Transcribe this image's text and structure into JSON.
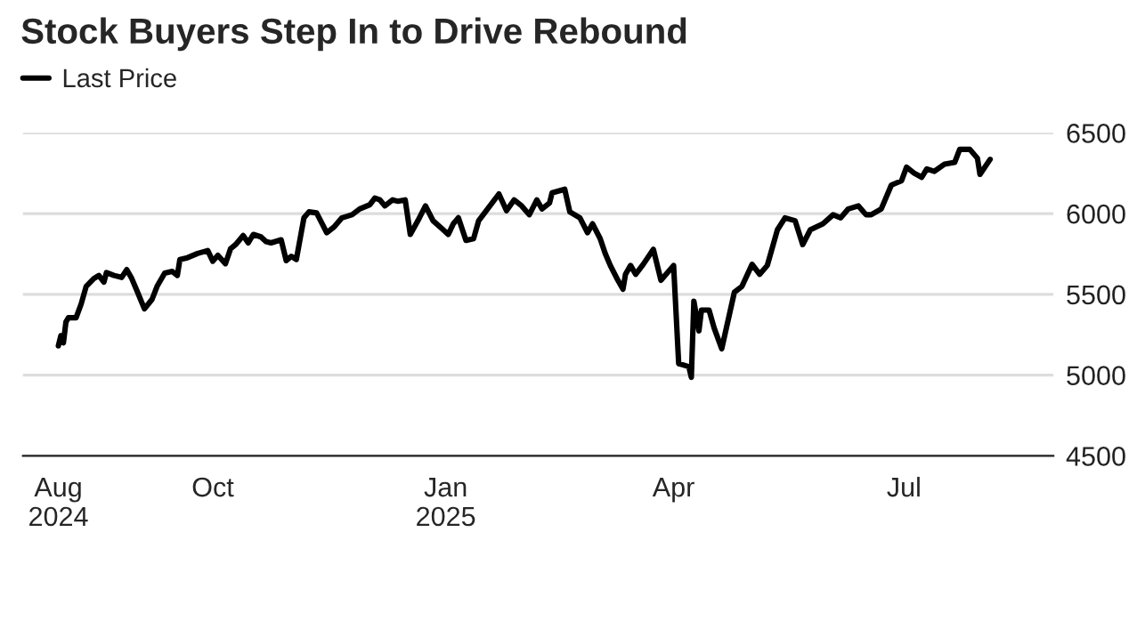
{
  "chart_data": {
    "type": "line",
    "title": "Stock Buyers Step In to Drive Rebound",
    "x": [
      "2024-08-01",
      "2024-08-02",
      "2024-08-03",
      "2024-08-04",
      "2024-08-05",
      "2024-08-08",
      "2024-08-10",
      "2024-08-12",
      "2024-08-15",
      "2024-08-17",
      "2024-08-19",
      "2024-08-20",
      "2024-08-23",
      "2024-08-26",
      "2024-08-28",
      "2024-08-30",
      "2024-09-01",
      "2024-09-04",
      "2024-09-07",
      "2024-09-09",
      "2024-09-12",
      "2024-09-15",
      "2024-09-17",
      "2024-09-18",
      "2024-09-21",
      "2024-09-25",
      "2024-09-29",
      "2024-10-01",
      "2024-10-03",
      "2024-10-06",
      "2024-10-08",
      "2024-10-10",
      "2024-10-13",
      "2024-10-15",
      "2024-10-17",
      "2024-10-20",
      "2024-10-22",
      "2024-10-24",
      "2024-10-28",
      "2024-10-30",
      "2024-11-01",
      "2024-11-03",
      "2024-11-06",
      "2024-11-08",
      "2024-11-11",
      "2024-11-12",
      "2024-11-15",
      "2024-11-18",
      "2024-11-21",
      "2024-11-25",
      "2024-11-28",
      "2024-12-02",
      "2024-12-04",
      "2024-12-06",
      "2024-12-08",
      "2024-12-11",
      "2024-12-13",
      "2024-12-16",
      "2024-12-18",
      "2024-12-21",
      "2024-12-24",
      "2024-12-27",
      "2024-12-31",
      "2025-01-02",
      "2025-01-04",
      "2025-01-06",
      "2025-01-09",
      "2025-01-12",
      "2025-01-14",
      "2025-01-17",
      "2025-01-22",
      "2025-01-25",
      "2025-01-28",
      "2025-01-31",
      "2025-02-03",
      "2025-02-06",
      "2025-02-08",
      "2025-02-11",
      "2025-02-12",
      "2025-02-17",
      "2025-02-19",
      "2025-02-23",
      "2025-02-26",
      "2025-02-28",
      "2025-03-03",
      "2025-03-05",
      "2025-03-07",
      "2025-03-10",
      "2025-03-12",
      "2025-03-13",
      "2025-03-15",
      "2025-03-17",
      "2025-03-20",
      "2025-03-24",
      "2025-03-27",
      "2025-04-01",
      "2025-04-03",
      "2025-04-07",
      "2025-04-08",
      "2025-04-09",
      "2025-04-11",
      "2025-04-12",
      "2025-04-15",
      "2025-04-17",
      "2025-04-20",
      "2025-04-25",
      "2025-04-28",
      "2025-05-02",
      "2025-05-05",
      "2025-05-08",
      "2025-05-12",
      "2025-05-15",
      "2025-05-19",
      "2025-05-22",
      "2025-05-25",
      "2025-05-30",
      "2025-06-03",
      "2025-06-06",
      "2025-06-09",
      "2025-06-13",
      "2025-06-16",
      "2025-06-18",
      "2025-06-22",
      "2025-06-26",
      "2025-06-30",
      "2025-07-02",
      "2025-07-05",
      "2025-07-08",
      "2025-07-10",
      "2025-07-13",
      "2025-07-17",
      "2025-07-21",
      "2025-07-23",
      "2025-07-27",
      "2025-07-30",
      "2025-07-31",
      "2025-08-04"
    ],
    "series": [
      {
        "name": "Last Price",
        "color": "#000000",
        "values": [
          5181,
          5244,
          5200,
          5329,
          5355,
          5355,
          5440,
          5550,
          5598,
          5617,
          5576,
          5635,
          5617,
          5605,
          5653,
          5598,
          5524,
          5410,
          5469,
          5550,
          5631,
          5642,
          5617,
          5716,
          5727,
          5753,
          5771,
          5705,
          5742,
          5690,
          5782,
          5808,
          5864,
          5819,
          5871,
          5856,
          5827,
          5819,
          5838,
          5709,
          5735,
          5716,
          5974,
          6011,
          6004,
          5974,
          5882,
          5919,
          5974,
          5993,
          6029,
          6055,
          6096,
          6085,
          6048,
          6085,
          6077,
          6085,
          5871,
          5956,
          6048,
          5956,
          5900,
          5871,
          5937,
          5974,
          5834,
          5845,
          5956,
          6018,
          6122,
          6018,
          6085,
          6048,
          5993,
          6085,
          6029,
          6066,
          6129,
          6151,
          6011,
          5974,
          5882,
          5937,
          5845,
          5753,
          5679,
          5587,
          5532,
          5624,
          5679,
          5624,
          5686,
          5779,
          5587,
          5679,
          5071,
          5052,
          4986,
          5458,
          5274,
          5403,
          5403,
          5292,
          5163,
          5513,
          5550,
          5686,
          5624,
          5679,
          5900,
          5974,
          5956,
          5808,
          5900,
          5937,
          5993,
          5974,
          6029,
          6048,
          5993,
          5993,
          6029,
          6177,
          6203,
          6288,
          6251,
          6225,
          6277,
          6262,
          6306,
          6317,
          6398,
          6398,
          6343,
          6243,
          6336
        ]
      }
    ],
    "xlim": [
      "2024-07-18",
      "2025-08-29"
    ],
    "xticks": [
      {
        "value": "2024-08-01",
        "label": "Aug\n2024"
      },
      {
        "value": "2024-10-01",
        "label": "Oct"
      },
      {
        "value": "2025-01-01",
        "label": "Jan\n2025"
      },
      {
        "value": "2025-04-01",
        "label": "Apr"
      },
      {
        "value": "2025-07-01",
        "label": "Jul"
      }
    ],
    "ylim": [
      4500,
      6500
    ],
    "yticks": [
      4500,
      5000,
      5500,
      6000,
      6500
    ],
    "grid": "y",
    "legend": "top left",
    "line_style": "solid",
    "marker": "none"
  }
}
